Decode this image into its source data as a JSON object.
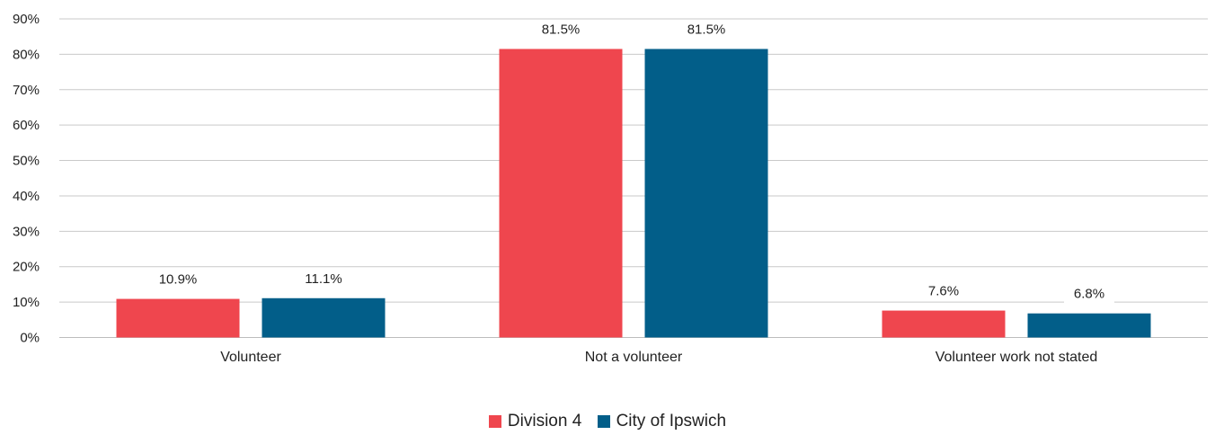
{
  "chart_data": {
    "type": "bar",
    "categories": [
      "Volunteer",
      "Not a volunteer",
      "Volunteer work not stated"
    ],
    "series": [
      {
        "name": "Division 4",
        "color": "#ef464e",
        "values": [
          10.9,
          81.5,
          7.6
        ],
        "labels": [
          "10.9%",
          "81.5%",
          "7.6%"
        ]
      },
      {
        "name": "City of Ipswich",
        "color": "#025e89",
        "values": [
          11.1,
          81.5,
          6.8
        ],
        "labels": [
          "11.1%",
          "81.5%",
          "6.8%"
        ]
      }
    ],
    "ylim": [
      0,
      90
    ],
    "yticks": [
      "0%",
      "10%",
      "20%",
      "30%",
      "40%",
      "50%",
      "60%",
      "70%",
      "80%",
      "90%"
    ],
    "grid": true,
    "legend_position": "bottom"
  }
}
